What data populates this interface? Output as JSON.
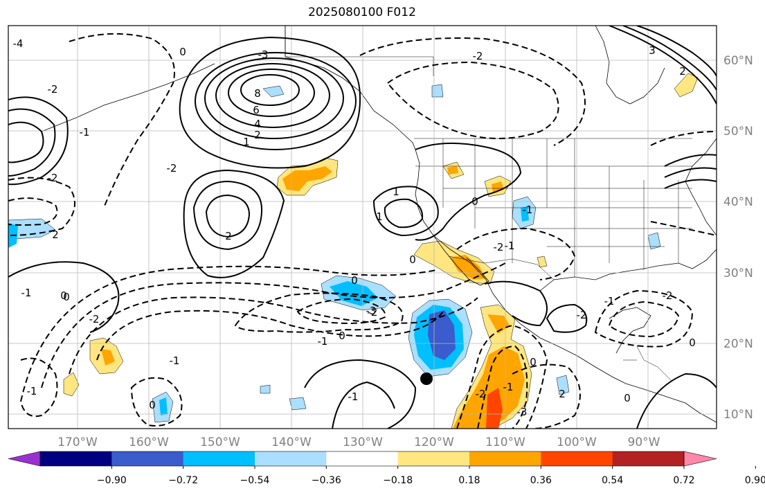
{
  "title": "2025080100 F012",
  "map": {
    "projection": "equirectangular",
    "lon_range": [
      -180,
      -80
    ],
    "lat_range": [
      8,
      65
    ],
    "contour_style": {
      "positive": "solid",
      "negative": "dashed"
    }
  },
  "lon_ticks": [
    "170°W",
    "160°W",
    "150°W",
    "140°W",
    "130°W",
    "120°W",
    "110°W",
    "100°W",
    "90°W"
  ],
  "lat_ticks": [
    "60°N",
    "50°N",
    "40°N",
    "30°N",
    "20°N",
    "10°N"
  ],
  "colorbar": {
    "ticks": [
      "−0.90",
      "−0.72",
      "−0.54",
      "−0.36",
      "−0.18",
      "0.18",
      "0.36",
      "0.54",
      "0.72",
      "0.90"
    ],
    "colors": [
      "#9b30d0",
      "#000080",
      "#3a5ccc",
      "#00bfff",
      "#aadfff",
      "#ffffff",
      "#ffe680",
      "#ffa500",
      "#ff4500",
      "#b22222",
      "#ff88aa"
    ]
  },
  "contour_labels": [
    "-4",
    "-2",
    "0",
    "-3",
    "3",
    "2",
    "8",
    "6",
    "4",
    "1",
    "2",
    "-1",
    "-2",
    "1",
    "-2",
    "2",
    "0",
    "-1",
    "0",
    "-1",
    "-2",
    "-1",
    "2",
    "1",
    "0",
    "-1",
    "-2",
    "0",
    "-1",
    "0",
    "-3",
    "-2",
    "-1",
    "-2",
    "-2",
    "0",
    "-1",
    "-1",
    "-2",
    "0",
    "-3",
    "2",
    "-1",
    "0",
    "-2",
    "0",
    "0"
  ],
  "marker": {
    "name": "storm-center",
    "symbol": "filled-circle"
  }
}
